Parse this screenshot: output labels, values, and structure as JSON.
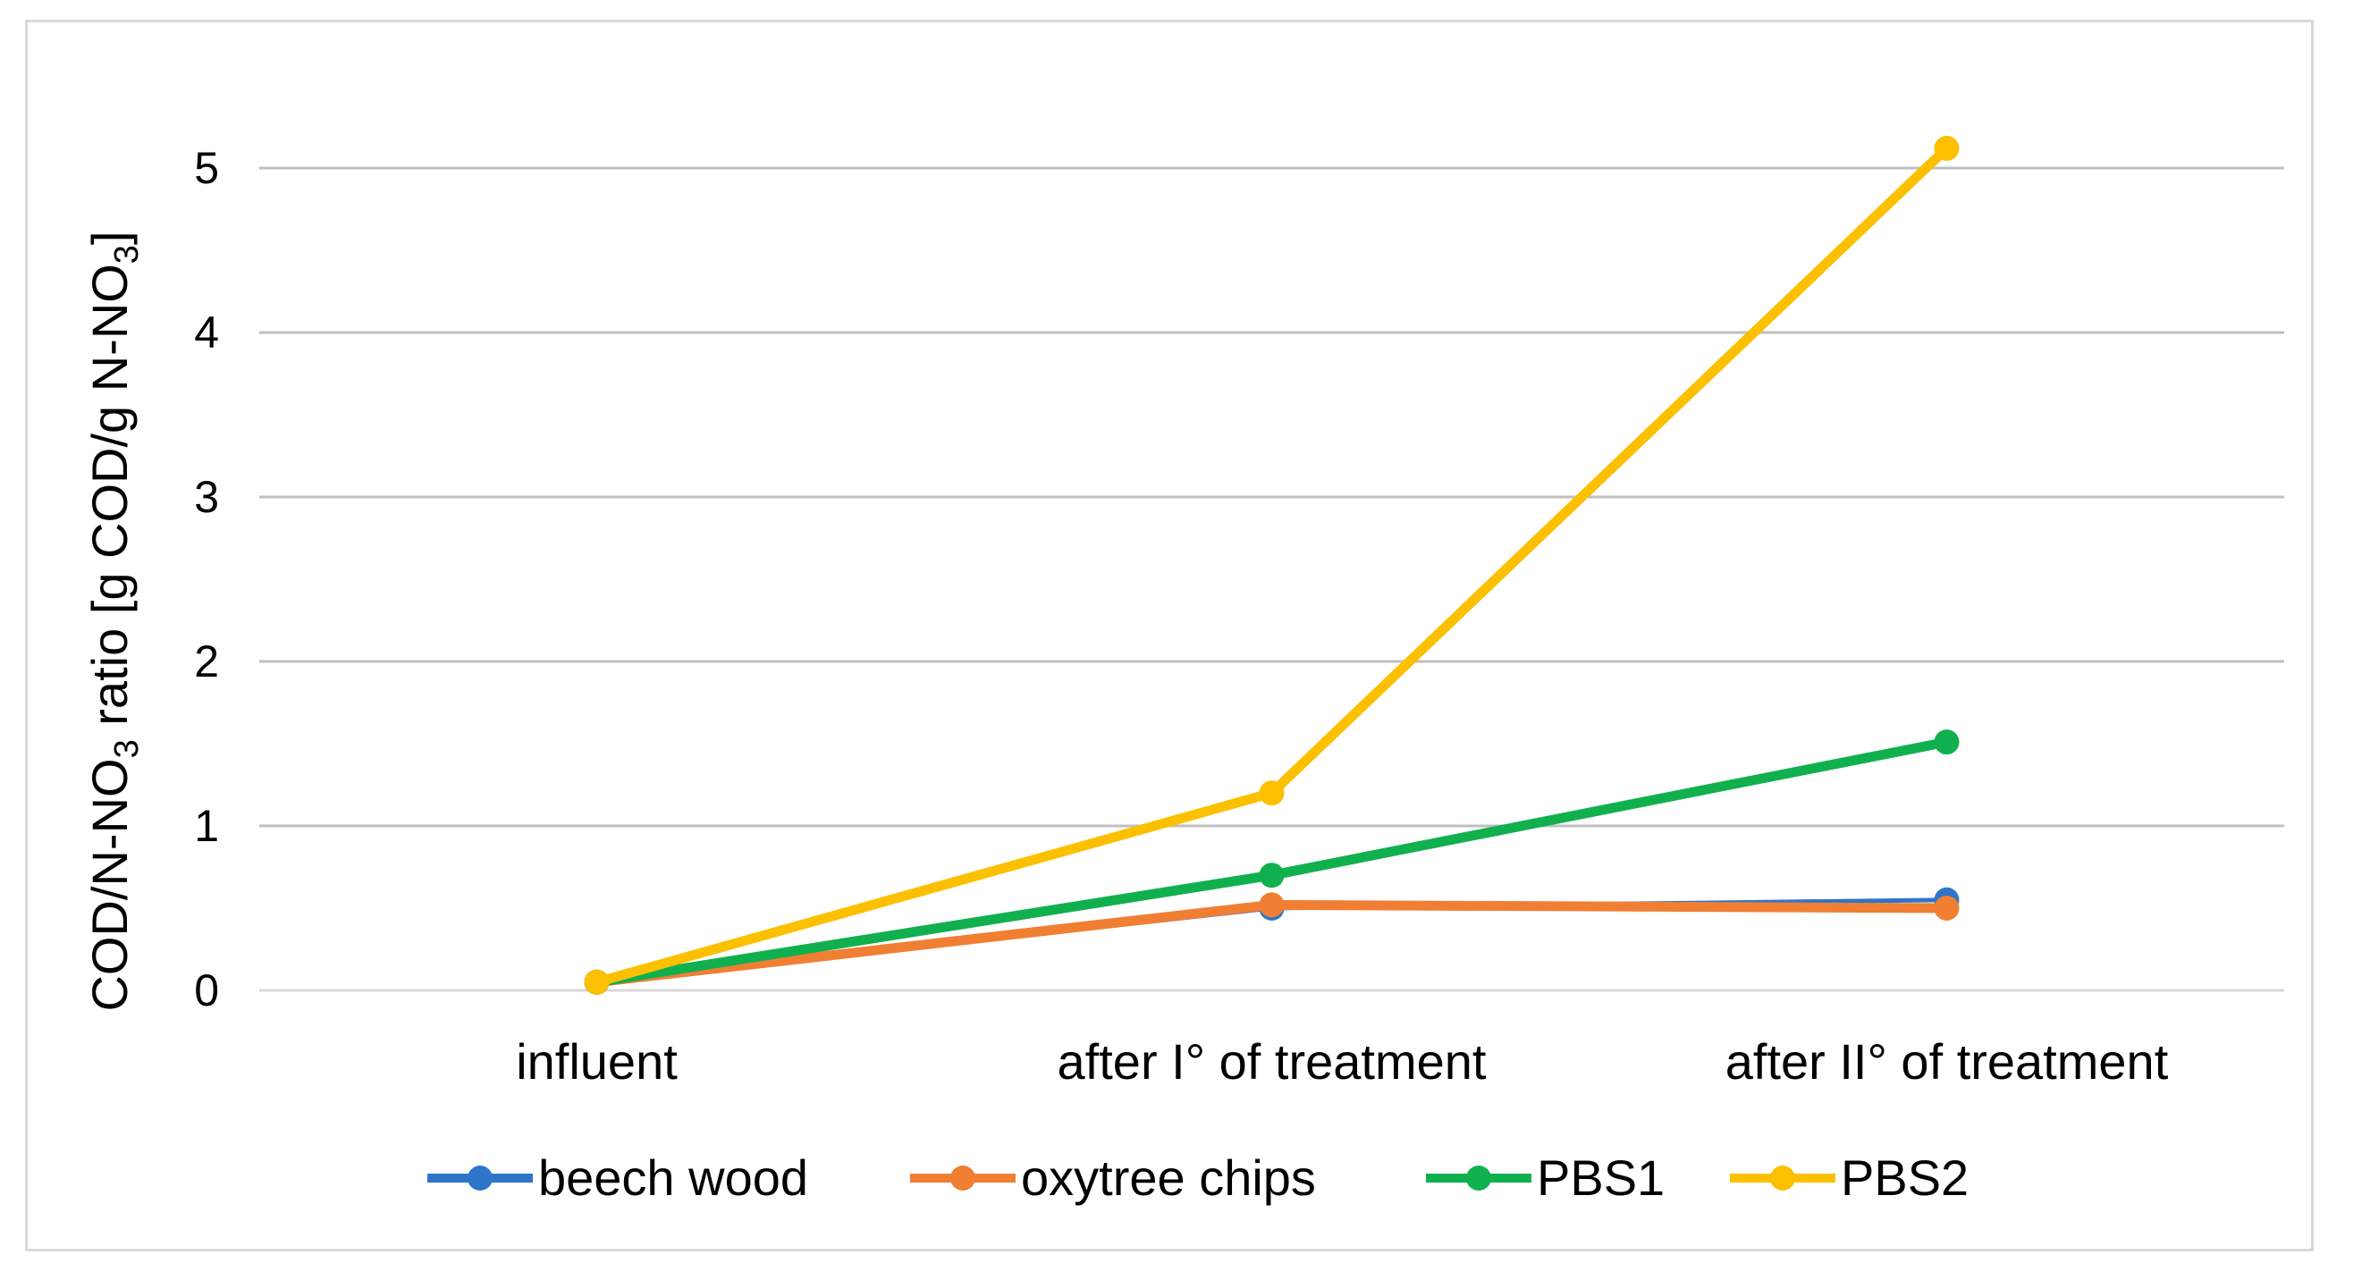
{
  "chart_data": {
    "type": "line",
    "categories": [
      "influent",
      "after I° of treatment",
      "after II° of treatment"
    ],
    "series": [
      {
        "name": "beech wood",
        "values": [
          0.05,
          0.5,
          0.55
        ],
        "color": "#2e75c9"
      },
      {
        "name": "oxytree chips",
        "values": [
          0.05,
          0.52,
          0.5
        ],
        "color": "#f07f34"
      },
      {
        "name": "PBS1",
        "values": [
          0.05,
          0.7,
          1.51
        ],
        "color": "#11b04f"
      },
      {
        "name": "PBS2",
        "values": [
          0.05,
          1.2,
          5.12
        ],
        "color": "#fcc000"
      }
    ],
    "ylabel": {
      "main": "COD/N-NO",
      "sub1": "3",
      "mid": " ratio [g COD/g N-NO",
      "sub2": "3",
      "end": "]"
    },
    "ylim": [
      0,
      5
    ],
    "yticks": [
      "0",
      "1",
      "2",
      "3",
      "4",
      "5"
    ],
    "grid": true,
    "legend": "bottom"
  }
}
